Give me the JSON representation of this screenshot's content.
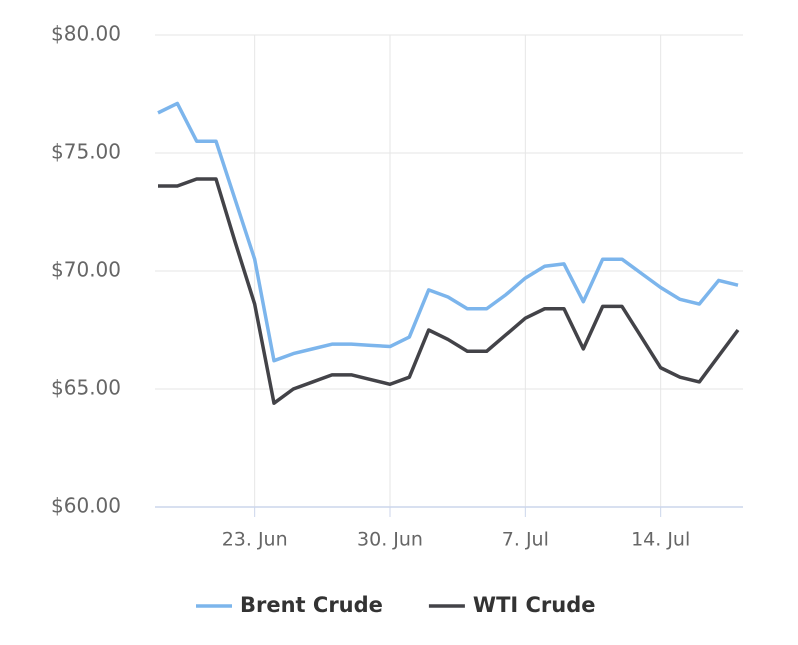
{
  "chart_data": {
    "type": "line",
    "categories": [
      null,
      null,
      null,
      null,
      null,
      "23. Jun",
      null,
      null,
      null,
      null,
      null,
      null,
      "30. Jun",
      null,
      null,
      null,
      null,
      null,
      null,
      "7. Jul",
      null,
      null,
      null,
      null,
      null,
      null,
      "14. Jul",
      null,
      null,
      null,
      null
    ],
    "series": [
      {
        "name": "Brent Crude",
        "color": "#7cb5ec",
        "values": [
          76.7,
          77.1,
          75.5,
          75.5,
          73.0,
          70.5,
          66.2,
          66.5,
          66.7,
          66.9,
          66.9,
          66.85,
          66.8,
          67.2,
          69.2,
          68.9,
          68.4,
          68.4,
          69.0,
          69.7,
          70.2,
          70.3,
          68.7,
          70.5,
          70.5,
          69.9,
          69.3,
          68.8,
          68.6,
          69.6,
          69.4
        ]
      },
      {
        "name": "WTI Crude",
        "color": "#434348",
        "values": [
          73.6,
          73.6,
          73.9,
          73.9,
          71.2,
          68.6,
          64.4,
          65.0,
          65.3,
          65.6,
          65.6,
          65.4,
          65.2,
          65.5,
          67.5,
          67.1,
          66.6,
          66.6,
          67.3,
          68.0,
          68.4,
          68.4,
          66.7,
          68.5,
          68.5,
          67.2,
          65.9,
          65.5,
          65.3,
          66.4,
          67.5
        ]
      }
    ],
    "ylim": [
      60,
      80
    ],
    "yticks": [
      {
        "value": 60,
        "label": "$60.00"
      },
      {
        "value": 65,
        "label": "$65.00"
      },
      {
        "value": 70,
        "label": "$70.00"
      },
      {
        "value": 75,
        "label": "$75.00"
      },
      {
        "value": 80,
        "label": "$80.00"
      }
    ],
    "grid": true,
    "legend": "bottom"
  }
}
